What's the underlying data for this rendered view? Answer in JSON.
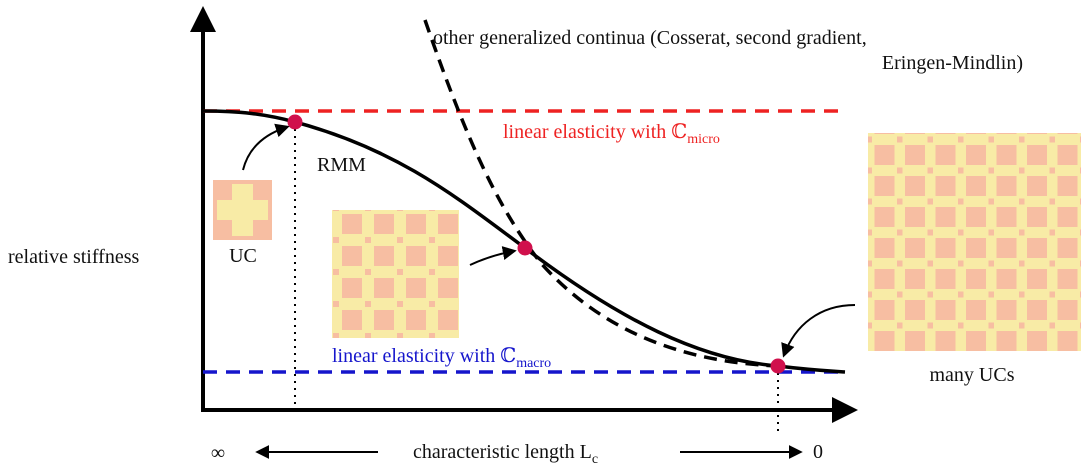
{
  "labels": {
    "other_continua_line1": "other generalized continua (Cosserat, second gradient,",
    "other_continua_line2": "Eringen-Mindlin)",
    "micro": {
      "text": "linear elasticity with ℂ",
      "subscript": "micro"
    },
    "macro": {
      "text": "linear elasticity with ℂ",
      "subscript": "macro"
    },
    "rmm": "RMM",
    "uc": "UC",
    "y_axis": "relative stiffness",
    "many_ucs": "many UCs",
    "x_axis": {
      "text": "characteristic length L",
      "subscript": "c"
    },
    "x_left": "∞",
    "x_right": "0"
  }
}
